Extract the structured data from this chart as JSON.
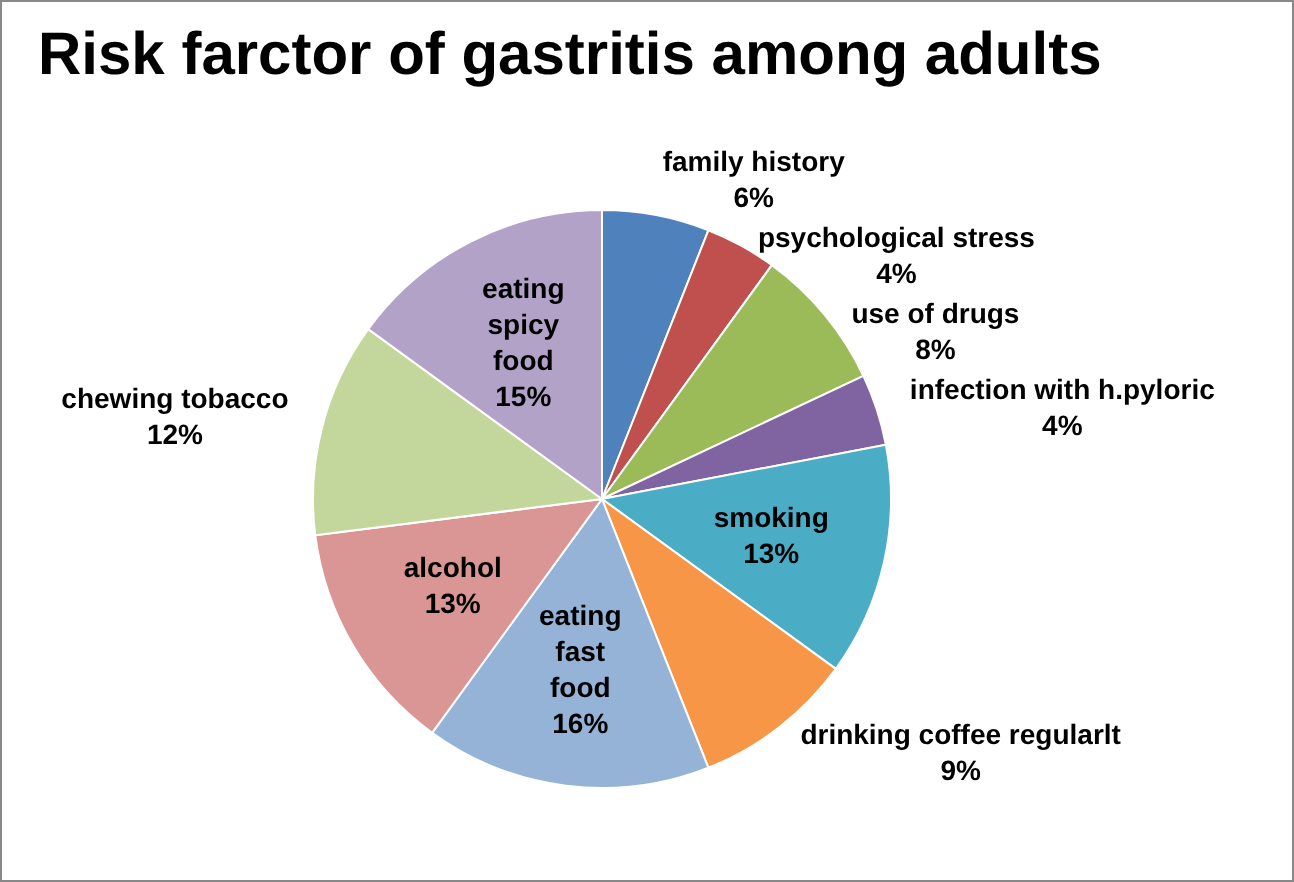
{
  "chart_data": {
    "type": "pie",
    "title": "Risk farctor of gastritis among adults",
    "categories": [
      "family history",
      "psychological stress",
      "use of drugs",
      "infection with h.pyloric",
      "smoking",
      "drinking coffee regularlt",
      "eating fast food",
      "alcohol",
      "chewing tobacco",
      "eating spicy food"
    ],
    "values": [
      6,
      4,
      8,
      4,
      13,
      9,
      16,
      13,
      12,
      15
    ],
    "value_labels": [
      "6%",
      "4%",
      "8%",
      "4%",
      "13%",
      "9%",
      "16%",
      "13%",
      "12%",
      "15%"
    ],
    "colors": [
      "#4f81bd",
      "#c0504d",
      "#9bbb59",
      "#8064a2",
      "#4bacc6",
      "#f79646",
      "#95b3d7",
      "#d99694",
      "#c3d69b",
      "#b3a2c7"
    ],
    "legend": false
  }
}
